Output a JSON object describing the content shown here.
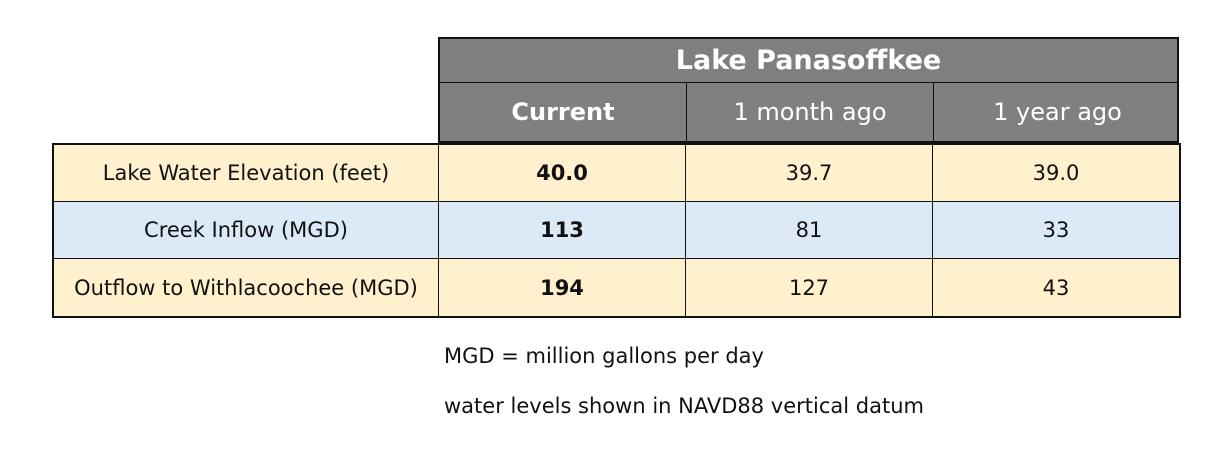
{
  "table": {
    "title": "Lake Panasoffkee",
    "columns": [
      "Current",
      "1 month ago",
      "1 year ago"
    ],
    "rows": [
      {
        "label": "Lake Water Elevation (feet)",
        "values": [
          "40.0",
          "39.7",
          "39.0"
        ]
      },
      {
        "label": "Creek Inflow (MGD)",
        "values": [
          "113",
          "81",
          "33"
        ]
      },
      {
        "label": "Outflow to Withlacoochee (MGD)",
        "values": [
          "194",
          "127",
          "43"
        ]
      }
    ]
  },
  "notes": [
    "MGD = million gallons per day",
    "water levels shown in NAVD88 vertical datum"
  ],
  "colors": {
    "header_bg": "#7f7f7f",
    "row_cream": "#fff1cd",
    "row_blue": "#dce9f6"
  }
}
